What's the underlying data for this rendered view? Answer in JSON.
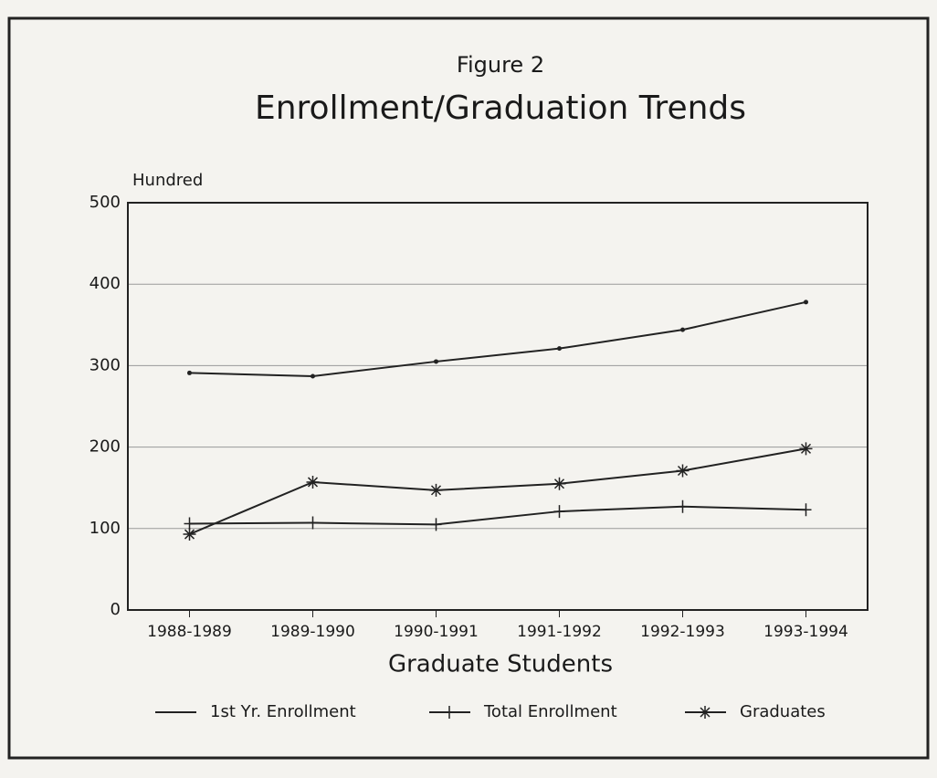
{
  "chart_data": {
    "type": "line",
    "subtitle": "Figure 2",
    "title": "Enrollment/Graduation Trends",
    "y_label": "Hundred",
    "x_label": "Graduate Students",
    "categories": [
      "1988-1989",
      "1989-1990",
      "1990-1991",
      "1991-1992",
      "1992-1993",
      "1993-1994"
    ],
    "series": [
      {
        "name": "1st Yr. Enrollment",
        "color": "#222222",
        "marker": "dot",
        "values": [
          291,
          287,
          305,
          321,
          344,
          378
        ]
      },
      {
        "name": "Total Enrollment",
        "color": "#222222",
        "marker": "plus",
        "values": [
          106,
          107,
          105,
          121,
          127,
          123
        ]
      },
      {
        "name": "Graduates",
        "color": "#222222",
        "marker": "star",
        "values": [
          93,
          157,
          147,
          155,
          171,
          198
        ]
      }
    ],
    "ylim": [
      0,
      500
    ],
    "yticks": [
      0,
      100,
      200,
      300,
      400,
      500
    ],
    "grid": true,
    "legend": "bottom"
  }
}
